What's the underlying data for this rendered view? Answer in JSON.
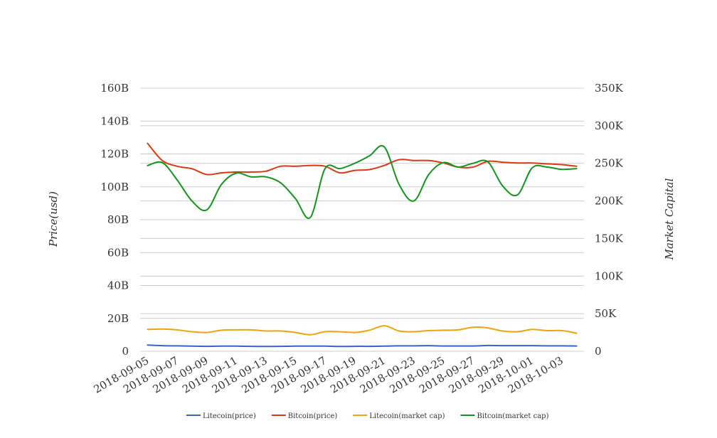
{
  "chart_data": {
    "type": "line",
    "title": "",
    "xlabel": "",
    "ylabel_left": "Price(usd)",
    "ylabel_right": "Market Capital",
    "ylim_left": [
      0,
      160000000000
    ],
    "ylim_right": [
      0,
      350000
    ],
    "yticks_left": [
      "0",
      "20B",
      "40B",
      "60B",
      "80B",
      "100B",
      "120B",
      "140B",
      "160B"
    ],
    "yticks_right": [
      "0",
      "50K",
      "100K",
      "150K",
      "200K",
      "250K",
      "300K",
      "350K"
    ],
    "grid": true,
    "legend_position": "bottom",
    "x": [
      "2018-09-05",
      "2018-09-06",
      "2018-09-07",
      "2018-09-08",
      "2018-09-09",
      "2018-09-10",
      "2018-09-11",
      "2018-09-12",
      "2018-09-13",
      "2018-09-14",
      "2018-09-15",
      "2018-09-16",
      "2018-09-17",
      "2018-09-18",
      "2018-09-19",
      "2018-09-20",
      "2018-09-21",
      "2018-09-22",
      "2018-09-23",
      "2018-09-24",
      "2018-09-25",
      "2018-09-26",
      "2018-09-27",
      "2018-09-28",
      "2018-09-29",
      "2018-09-30",
      "2018-10-01",
      "2018-10-02",
      "2018-10-03",
      "2018-10-04"
    ],
    "xtick_labels": [
      "2018-09-05",
      "2018-09-07",
      "2018-09-09",
      "2018-09-11",
      "2018-09-13",
      "2018-09-15",
      "2018-09-17",
      "2018-09-19",
      "2018-09-21",
      "2018-09-23",
      "2018-09-25",
      "2018-09-27",
      "2018-09-29",
      "2018-10-01",
      "2018-10-03"
    ],
    "series": [
      {
        "name": "Litecoin(price)",
        "axis": "left",
        "color": "#3366cc",
        "values": [
          3800000000.0,
          3400000000.0,
          3300000000.0,
          3100000000.0,
          3000000000.0,
          3100000000.0,
          3100000000.0,
          3000000000.0,
          2900000000.0,
          3000000000.0,
          3100000000.0,
          3100000000.0,
          3100000000.0,
          2900000000.0,
          3000000000.0,
          3000000000.0,
          3100000000.0,
          3300000000.0,
          3300000000.0,
          3400000000.0,
          3200000000.0,
          3200000000.0,
          3200000000.0,
          3500000000.0,
          3400000000.0,
          3400000000.0,
          3400000000.0,
          3300000000.0,
          3300000000.0,
          3200000000.0
        ]
      },
      {
        "name": "Bitcoin(price)",
        "axis": "left",
        "color": "#dc3912",
        "values": [
          126500000000.0,
          116000000000.0,
          112500000000.0,
          111000000000.0,
          107500000000.0,
          108500000000.0,
          109000000000.0,
          109000000000.0,
          109500000000.0,
          112500000000.0,
          112500000000.0,
          113000000000.0,
          112500000000.0,
          108500000000.0,
          110000000000.0,
          110500000000.0,
          113000000000.0,
          116500000000.0,
          116000000000.0,
          116000000000.0,
          114500000000.0,
          112000000000.0,
          112000000000.0,
          115500000000.0,
          115000000000.0,
          114500000000.0,
          114500000000.0,
          114000000000.0,
          113500000000.0,
          112500000000.0
        ]
      },
      {
        "name": "Litecoin(market cap)",
        "axis": "right",
        "color": "#f0a30a",
        "values": [
          29000,
          29500,
          28500,
          26000,
          25000,
          28000,
          28500,
          28500,
          27000,
          27000,
          25000,
          22000,
          26000,
          26000,
          25000,
          28000,
          34000,
          27000,
          26000,
          27500,
          28000,
          28500,
          32000,
          31000,
          27000,
          26000,
          29000,
          27500,
          27500,
          24000
        ]
      },
      {
        "name": "Bitcoin(market cap)",
        "axis": "right",
        "color": "#109618",
        "values": [
          247000,
          251000,
          228000,
          200000,
          188000,
          222000,
          237000,
          232000,
          232000,
          224000,
          203000,
          178000,
          243000,
          243000,
          250000,
          260000,
          272000,
          222000,
          200000,
          235000,
          251000,
          245000,
          250000,
          252000,
          220000,
          208000,
          244000,
          245000,
          242000,
          243000
        ]
      }
    ]
  }
}
